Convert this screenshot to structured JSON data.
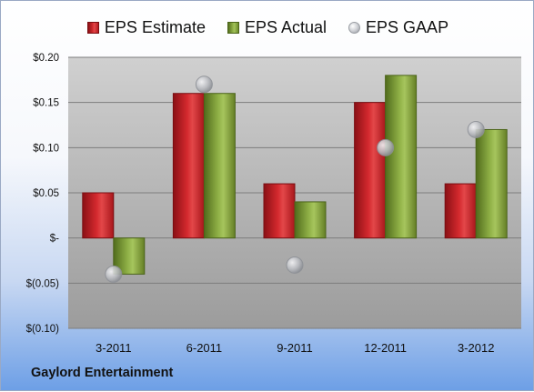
{
  "company": "Gaylord Entertainment",
  "legend": {
    "estimate": "EPS Estimate",
    "actual": "EPS Actual",
    "gaap": "EPS GAAP"
  },
  "colors": {
    "estimate": "#c8232a",
    "actual": "#8bab45",
    "gaap": "#c0c2c7",
    "plot_bg_top": "#c9c9c9",
    "plot_bg_bottom": "#9e9e9e"
  },
  "chart_data": {
    "type": "bar",
    "categories": [
      "3-2011",
      "6-2011",
      "9-2011",
      "12-2011",
      "3-2012"
    ],
    "series": [
      {
        "name": "EPS Estimate",
        "kind": "bar",
        "values": [
          0.05,
          0.16,
          0.06,
          0.15,
          0.06
        ]
      },
      {
        "name": "EPS Actual",
        "kind": "bar",
        "values": [
          -0.04,
          0.16,
          0.04,
          0.18,
          0.12
        ]
      },
      {
        "name": "EPS GAAP",
        "kind": "marker",
        "values": [
          -0.04,
          0.17,
          -0.03,
          0.1,
          0.12
        ]
      }
    ],
    "ylim": [
      -0.1,
      0.2
    ],
    "yticks": [
      0.2,
      0.15,
      0.1,
      0.05,
      0,
      -0.05,
      -0.1
    ],
    "ytick_labels": [
      "$0.20",
      "$0.15",
      "$0.10",
      "$0.05",
      "$-",
      "$(0.05)",
      "$(0.10)"
    ],
    "grid": true,
    "legend_position": "top"
  }
}
